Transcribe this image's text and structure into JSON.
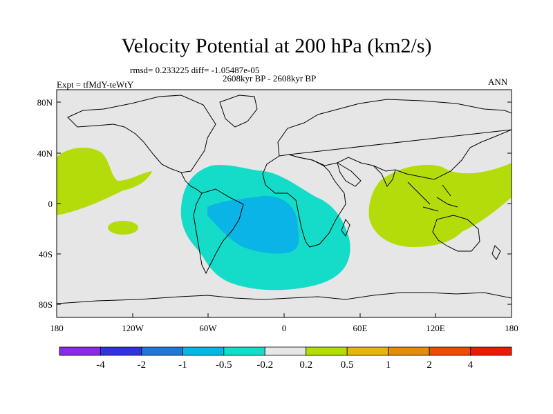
{
  "plot": {
    "title": "Velocity Potential at 200 hPa (km2/s)",
    "stats": "rmsd= 0.233225 diff= -1.05487e-05",
    "period": "2608kyr BP - 2608kyr BP",
    "experiment": "Expt = tfMdY-teWtY",
    "season": "ANN"
  },
  "axes": {
    "lat_ticks": [
      "80N",
      "40N",
      "0",
      "40S",
      "80S"
    ],
    "lon_ticks": [
      "180",
      "120W",
      "60W",
      "0",
      "60E",
      "120E",
      "180"
    ]
  },
  "colorbar": {
    "colors": [
      "#8a2be2",
      "#3232dc",
      "#1e78dc",
      "#0ab4e6",
      "#14dcc8",
      "#e6e6e6",
      "#b4dc0a",
      "#e6b414",
      "#e68c0a",
      "#e65000",
      "#e61e00"
    ],
    "labels": [
      "-4",
      "-2",
      "-1",
      "-0.5",
      "-0.2",
      "0.2",
      "0.5",
      "1",
      "2",
      "4"
    ]
  },
  "fields": {
    "ocean_color": "#e6e6e6",
    "land_outline_color": "#000000"
  }
}
